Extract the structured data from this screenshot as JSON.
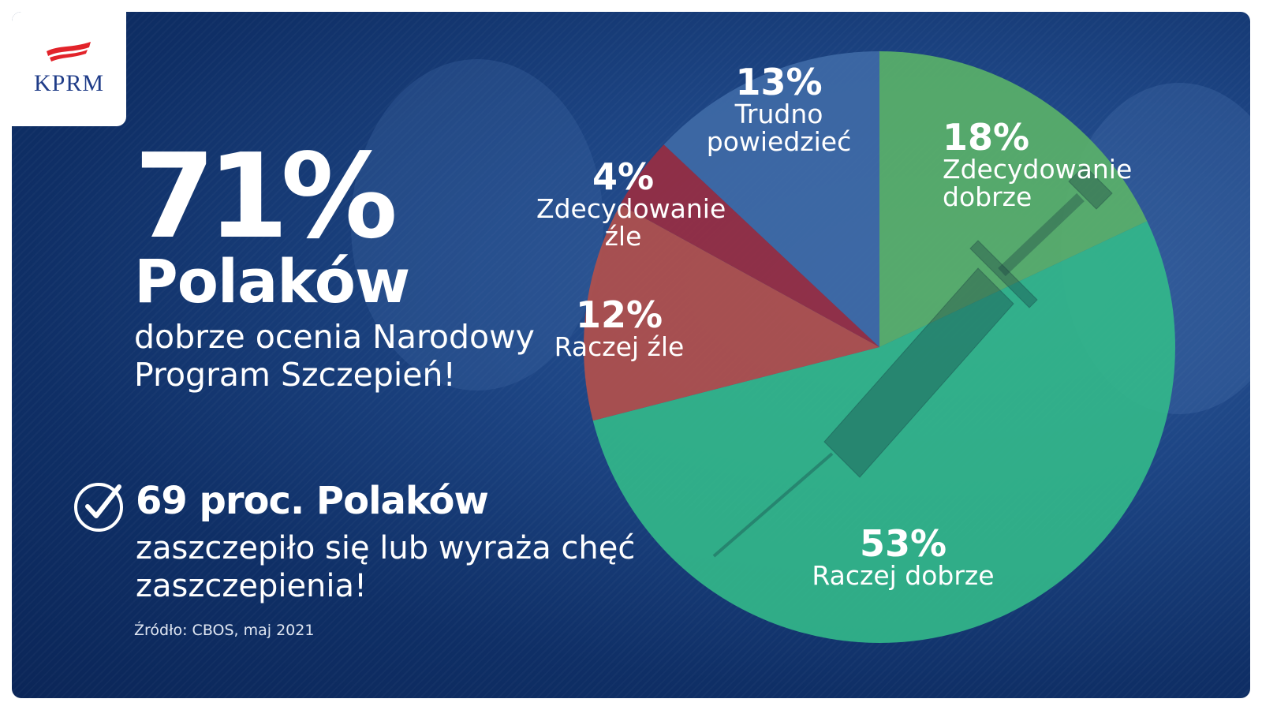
{
  "brand": {
    "logo_text": "KPRM"
  },
  "headline": {
    "percent": "71%",
    "subject": "Polaków",
    "description": "dobrze ocenia Narodowy Program Szczepień!"
  },
  "secondary": {
    "highlight": "69 proc. Polaków",
    "text": "zaszczepiło się lub wyraża chęć zaszczepienia!"
  },
  "source": "Źródło: CBOS, maj 2021",
  "colors": {
    "zdecydowanie_dobrze": "#5bb368",
    "raczej_dobrze": "#33b98a",
    "raczej_zle": "#b5504a",
    "zdecydowanie_zle": "#9a2c40",
    "trudno_powiedziec": "#3f6aa6"
  },
  "chart_data": {
    "type": "pie",
    "categories": [
      "Zdecydowanie dobrze",
      "Raczej dobrze",
      "Raczej źle",
      "Zdecydowanie źle",
      "Trudno powiedzieć"
    ],
    "values": [
      18,
      53,
      12,
      4,
      13
    ],
    "value_labels": [
      "18%",
      "53%",
      "12%",
      "4%",
      "13%"
    ],
    "start_angle_deg": 0,
    "direction": "clockwise"
  },
  "icons": {
    "check": "check-circle-icon",
    "flag": "flag-icon"
  }
}
